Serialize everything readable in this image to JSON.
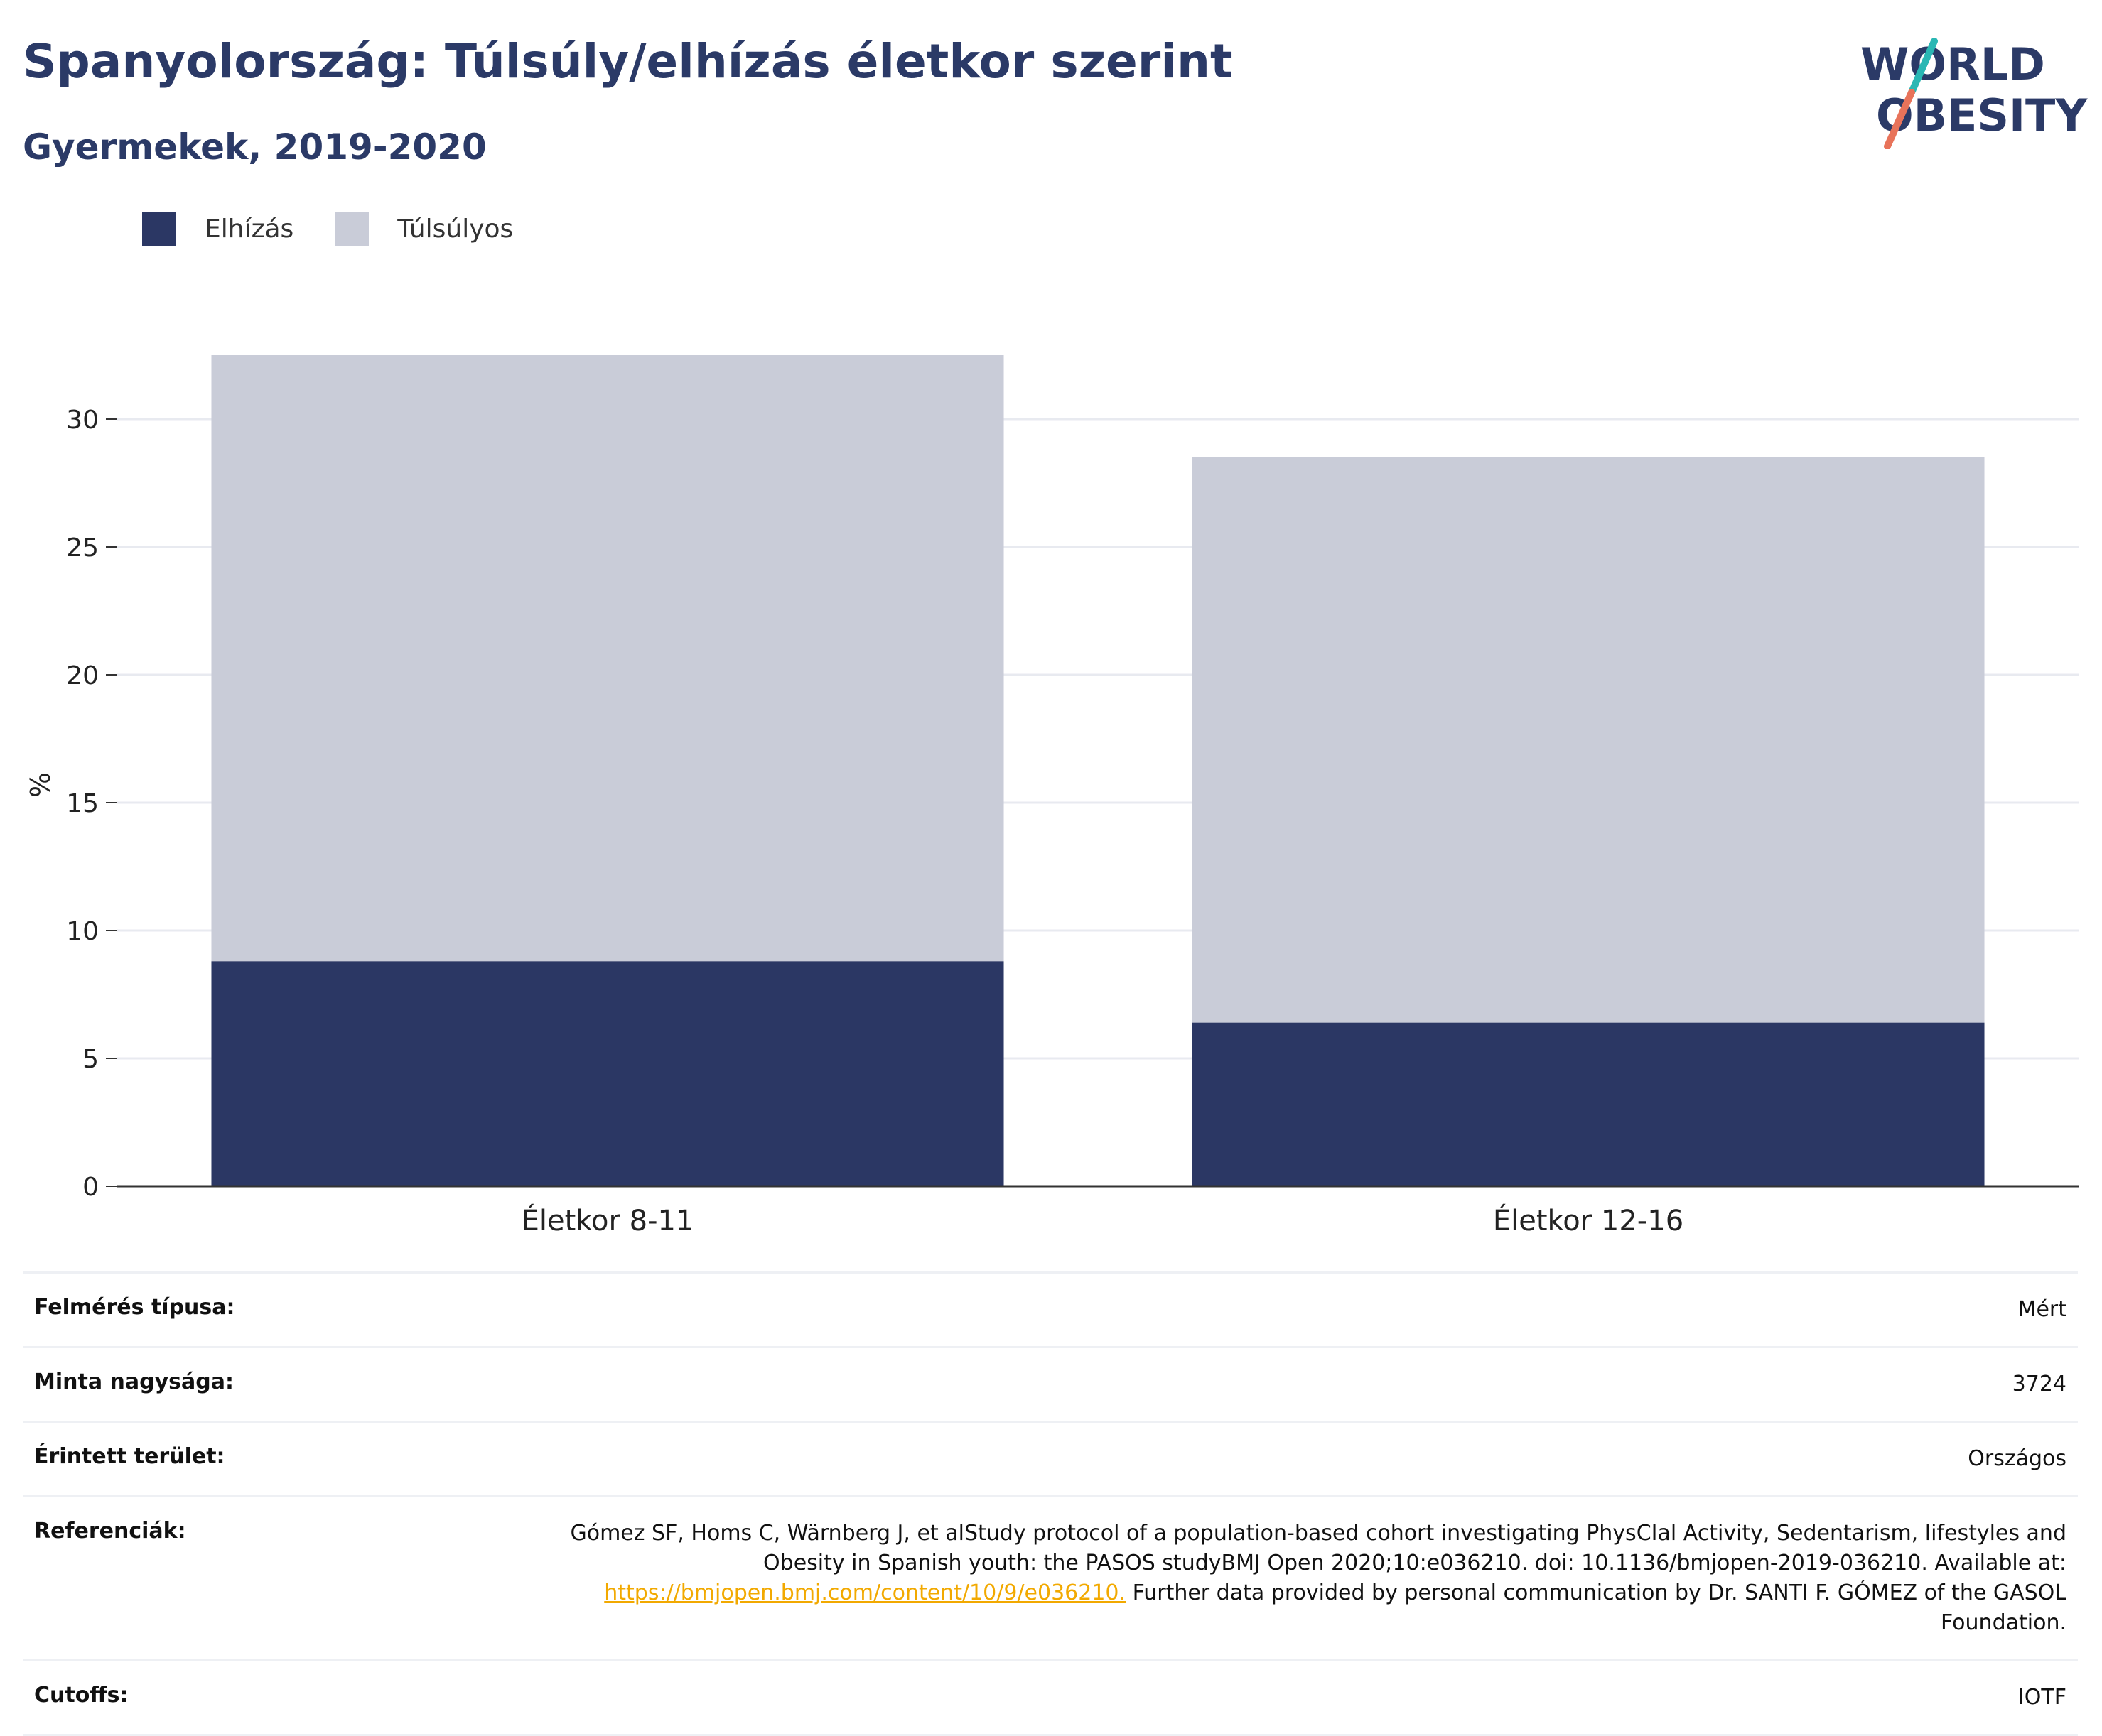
{
  "title": "Spanyolország: Túlsúly/elhízás életkor szerint",
  "subtitle": "Gyermekek, 2019-2020",
  "logo": {
    "line1": "WORLD",
    "line2": "OBESITY",
    "accent_teal": "#2ab7b4",
    "accent_coral": "#e8735a"
  },
  "legend": [
    {
      "label": "Elhízás",
      "color": "#2b3764"
    },
    {
      "label": "Túlsúlyos",
      "color": "#c9ccd8"
    }
  ],
  "chart_data": {
    "type": "bar",
    "stacked": true,
    "categories": [
      "Életkor 8-11",
      "Életkor 12-16"
    ],
    "series": [
      {
        "name": "Elhízás",
        "values": [
          8.8,
          6.4
        ],
        "color": "#2b3764"
      },
      {
        "name": "Túlsúlyos",
        "values": [
          23.7,
          22.1
        ],
        "color": "#c9ccd8"
      }
    ],
    "ylabel": "%",
    "ylim": [
      0,
      32.5
    ],
    "yticks": [
      0,
      5,
      10,
      15,
      20,
      25,
      30
    ],
    "grid": true,
    "legend_position": "top-left"
  },
  "info": {
    "survey_type": {
      "label": "Felmérés típusa:",
      "value": "Mért"
    },
    "sample_size": {
      "label": "Minta nagysága:",
      "value": "3724"
    },
    "area": {
      "label": "Érintett terület:",
      "value": "Országos"
    },
    "references": {
      "label": "Referenciák:",
      "text1": "Gómez SF, Homs C, Wärnberg J, et alStudy protocol of a population-based cohort investigating PhysCIal Activity, Sedentarism, lifestyles and Obesity in Spanish youth: the PASOS studyBMJ Open 2020;10:e036210. doi: 10.1136/bmjopen-2019-036210. Available at:",
      "link": "https://bmjopen.bmj.com/content/10/9/e036210.",
      "text2": "Further data provided by personal communication by Dr. SANTI F. GÓMEZ of the GASOL Foundation."
    },
    "cutoffs": {
      "label": "Cutoffs:",
      "value": "IOTF"
    }
  }
}
